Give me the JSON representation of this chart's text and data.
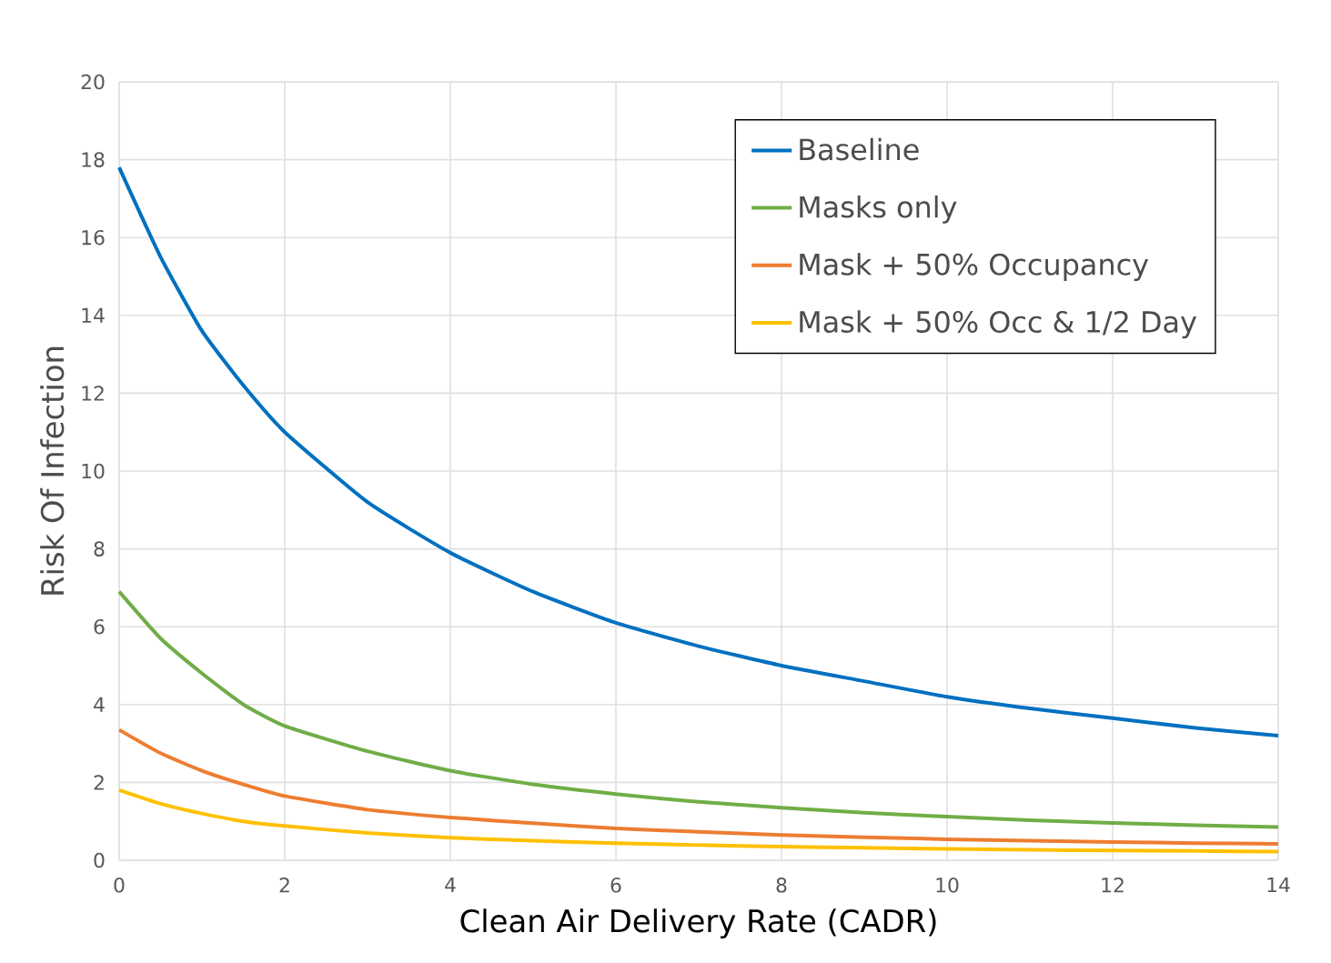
{
  "chart_data": {
    "type": "line",
    "xlabel": "Clean Air Delivery Rate (CADR)",
    "ylabel": "Risk Of Infection",
    "x": [
      0,
      0.5,
      1,
      1.5,
      2,
      3,
      4,
      5,
      6,
      7,
      8,
      9,
      10,
      11,
      12,
      13,
      14
    ],
    "series": [
      {
        "name": "Baseline",
        "color": "#0070c0",
        "values": [
          17.8,
          15.5,
          13.6,
          12.2,
          11.0,
          9.2,
          7.9,
          6.9,
          6.1,
          5.5,
          5.0,
          4.6,
          4.2,
          3.9,
          3.65,
          3.4,
          3.2
        ]
      },
      {
        "name": "Masks only",
        "color": "#70ad47",
        "values": [
          6.9,
          5.7,
          4.8,
          4.0,
          3.45,
          2.8,
          2.3,
          1.95,
          1.7,
          1.5,
          1.35,
          1.22,
          1.12,
          1.03,
          0.96,
          0.9,
          0.85
        ]
      },
      {
        "name": "Mask + 50% Occupancy",
        "color": "#ed7d31",
        "values": [
          3.35,
          2.75,
          2.3,
          1.95,
          1.65,
          1.3,
          1.1,
          0.95,
          0.82,
          0.73,
          0.65,
          0.59,
          0.54,
          0.5,
          0.47,
          0.44,
          0.42
        ]
      },
      {
        "name": "Mask + 50% Occ & 1/2 Day",
        "color": "#ffc000",
        "values": [
          1.8,
          1.45,
          1.2,
          1.0,
          0.88,
          0.7,
          0.58,
          0.5,
          0.44,
          0.39,
          0.35,
          0.32,
          0.29,
          0.27,
          0.25,
          0.24,
          0.22
        ]
      }
    ],
    "xlim": [
      0,
      14
    ],
    "xticks": [
      0,
      2,
      4,
      6,
      8,
      10,
      12,
      14
    ],
    "ylim": [
      0,
      20
    ],
    "yticks": [
      0,
      2,
      4,
      6,
      8,
      10,
      12,
      14,
      16,
      18,
      20
    ],
    "grid": true,
    "legend": "top right"
  }
}
